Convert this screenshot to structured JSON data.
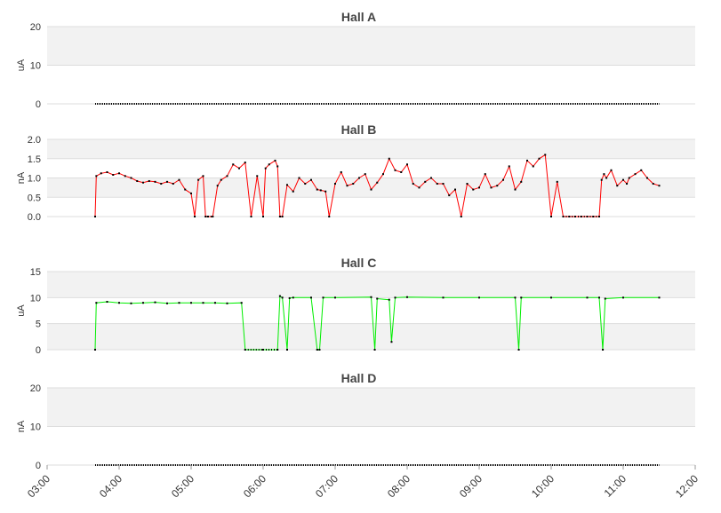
{
  "colors": {
    "band": "#f2f2f2",
    "grid": "#dddddd",
    "axis": "#cccccc",
    "marker": "#000000"
  },
  "chart_data": [
    {
      "type": "line",
      "title": "Hall A",
      "ylabel": "uA",
      "ylim": [
        0,
        20
      ],
      "yticks": [
        "0",
        "10",
        "20"
      ],
      "line_color": "#000000",
      "x": [
        "03:40",
        "11:30"
      ],
      "series": [
        {
          "values": [
            0,
            0
          ]
        }
      ]
    },
    {
      "type": "line",
      "title": "Hall B",
      "ylabel": "nA",
      "ylim": [
        0,
        2
      ],
      "yticks": [
        "0.0",
        "0.5",
        "1.0",
        "1.5",
        "2.0"
      ],
      "line_color": "#ff0000",
      "x": [
        "03:40",
        "03:41",
        "03:45",
        "03:50",
        "03:55",
        "04:00",
        "04:05",
        "04:10",
        "04:15",
        "04:20",
        "04:25",
        "04:30",
        "04:35",
        "04:40",
        "04:45",
        "04:50",
        "04:55",
        "05:00",
        "05:03",
        "05:06",
        "05:10",
        "05:12",
        "05:14",
        "05:18",
        "05:22",
        "05:25",
        "05:30",
        "05:35",
        "05:40",
        "05:45",
        "05:50",
        "05:55",
        "06:00",
        "06:02",
        "06:05",
        "06:10",
        "06:12",
        "06:14",
        "06:16",
        "06:20",
        "06:25",
        "06:30",
        "06:35",
        "06:40",
        "06:45",
        "06:48",
        "06:52",
        "06:55",
        "07:00",
        "07:05",
        "07:10",
        "07:15",
        "07:20",
        "07:25",
        "07:30",
        "07:35",
        "07:40",
        "07:45",
        "07:50",
        "07:55",
        "08:00",
        "08:05",
        "08:10",
        "08:15",
        "08:20",
        "08:25",
        "08:30",
        "08:35",
        "08:40",
        "08:45",
        "08:50",
        "08:55",
        "09:00",
        "09:05",
        "09:10",
        "09:15",
        "09:20",
        "09:25",
        "09:30",
        "09:35",
        "09:40",
        "09:45",
        "09:50",
        "09:55",
        "10:00",
        "10:05",
        "10:10",
        "10:15",
        "10:20",
        "10:25",
        "10:30",
        "10:35",
        "10:40",
        "10:42",
        "10:44",
        "10:46",
        "10:50",
        "10:55",
        "11:00",
        "11:03",
        "11:05",
        "11:10",
        "11:15",
        "11:20",
        "11:25",
        "11:30"
      ],
      "series": [
        {
          "values": [
            0,
            1.05,
            1.12,
            1.15,
            1.08,
            1.12,
            1.05,
            1.0,
            0.92,
            0.88,
            0.92,
            0.9,
            0.85,
            0.9,
            0.85,
            0.95,
            0.7,
            0.6,
            0.0,
            0.95,
            1.05,
            0.0,
            0.0,
            0.0,
            0.8,
            0.95,
            1.05,
            1.35,
            1.25,
            1.4,
            0.0,
            1.05,
            0.0,
            1.25,
            1.35,
            1.45,
            1.3,
            0.0,
            0.0,
            0.82,
            0.65,
            1.0,
            0.85,
            0.95,
            0.7,
            0.68,
            0.65,
            0.0,
            0.85,
            1.15,
            0.8,
            0.85,
            1.0,
            1.1,
            0.7,
            0.88,
            1.1,
            1.5,
            1.2,
            1.15,
            1.35,
            0.85,
            0.75,
            0.9,
            1.0,
            0.85,
            0.85,
            0.55,
            0.7,
            0.0,
            0.85,
            0.7,
            0.75,
            1.1,
            0.75,
            0.8,
            0.95,
            1.3,
            0.7,
            0.9,
            1.45,
            1.3,
            1.5,
            1.6,
            0.0,
            0.9,
            0.0,
            0.0,
            0.0,
            0.0,
            0.0,
            0.0,
            0.0,
            0.95,
            1.1,
            1.0,
            1.2,
            0.8,
            0.95,
            0.85,
            1.0,
            1.1,
            1.2,
            1.0,
            0.85,
            0.8
          ]
        }
      ]
    },
    {
      "type": "line",
      "title": "Hall C",
      "ylabel": "uA",
      "ylim": [
        0,
        15
      ],
      "yticks": [
        "0",
        "5",
        "10",
        "15"
      ],
      "line_color": "#00ee00",
      "x": [
        "03:40",
        "03:41",
        "03:50",
        "04:00",
        "04:10",
        "04:20",
        "04:30",
        "04:40",
        "04:50",
        "05:00",
        "05:10",
        "05:20",
        "05:30",
        "05:42",
        "05:45",
        "06:00",
        "06:12",
        "06:14",
        "06:16",
        "06:20",
        "06:22",
        "06:25",
        "06:40",
        "06:45",
        "06:47",
        "06:50",
        "07:00",
        "07:30",
        "07:33",
        "07:35",
        "07:45",
        "07:47",
        "07:50",
        "08:00",
        "08:30",
        "09:00",
        "09:30",
        "09:33",
        "09:35",
        "10:00",
        "10:30",
        "10:40",
        "10:43",
        "10:45",
        "11:00",
        "11:30"
      ],
      "series": [
        {
          "values": [
            0,
            9,
            9.2,
            9,
            8.9,
            9,
            9.1,
            8.9,
            9,
            9,
            9,
            9,
            8.9,
            9,
            0,
            0,
            0,
            10.3,
            10,
            0,
            9.9,
            10,
            10,
            0,
            0,
            10,
            10,
            10.1,
            0,
            9.8,
            9.6,
            1.5,
            10,
            10.1,
            10,
            10,
            10,
            0,
            10,
            10,
            10,
            10,
            0,
            9.8,
            10,
            10
          ]
        }
      ]
    },
    {
      "type": "line",
      "title": "Hall D",
      "ylabel": "nA",
      "ylim": [
        0,
        20
      ],
      "yticks": [
        "0",
        "10",
        "20"
      ],
      "line_color": "#000000",
      "x": [
        "03:40",
        "11:30"
      ],
      "series": [
        {
          "values": [
            0,
            0
          ]
        }
      ]
    }
  ],
  "x_axis": {
    "ticks": [
      "03:00",
      "04:00",
      "05:00",
      "06:00",
      "07:00",
      "08:00",
      "09:00",
      "10:00",
      "11:00",
      "12:00"
    ]
  }
}
